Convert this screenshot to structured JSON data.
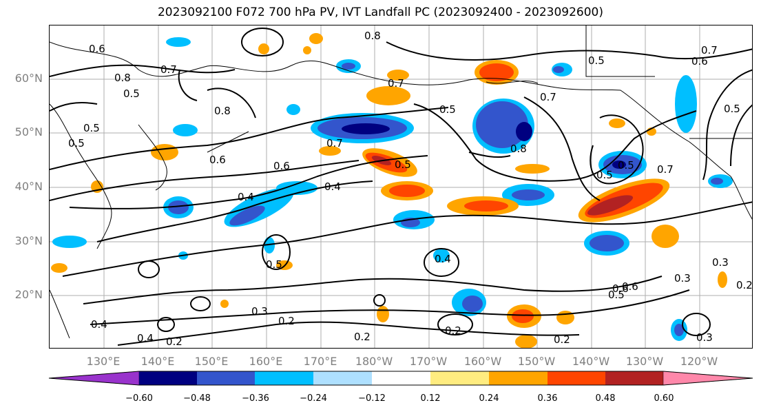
{
  "title": "2023092100 F072 700 hPa PV, IVT Landfall PC (2023092400 - 2023092600)",
  "latitude_labels": [
    "60°N",
    "50°N",
    "40°N",
    "30°N",
    "20°N"
  ],
  "longitude_labels": [
    "130°E",
    "140°E",
    "150°E",
    "160°E",
    "170°E",
    "180°W",
    "170°W",
    "160°W",
    "150°W",
    "140°W",
    "130°W",
    "120°W"
  ],
  "colorbar": {
    "colors": [
      "#9933cc",
      "#000080",
      "#3355cc",
      "#00bfff",
      "#aee0ff",
      "#ffffff",
      "#ffec80",
      "#ffa500",
      "#ff4500",
      "#b22222",
      "#ff88aa"
    ],
    "ticks": [
      "−0.60",
      "−0.48",
      "−0.36",
      "−0.24",
      "−0.12",
      "0.12",
      "0.24",
      "0.36",
      "0.48",
      "0.60"
    ]
  },
  "contour_labels": [
    "0.6",
    "0.7",
    "0.8",
    "0.5",
    "0.8",
    "0.5",
    "0.5",
    "0.4",
    "0.7",
    "0.6",
    "0.4",
    "0.5",
    "0.6",
    "0.8",
    "0.7",
    "0.5",
    "0.7",
    "0.8",
    "0.5",
    "0.6",
    "0.7",
    "0.5",
    "0.7",
    "0.5",
    "0.4",
    "0.5",
    "0.6",
    "0.5",
    "0.3",
    "0.3",
    "0.2",
    "0.4",
    "0.2",
    "0.2",
    "0.2",
    "0.2",
    "0.3",
    "0.3",
    "0.2",
    "0.4",
    "0.5",
    "0.6"
  ]
}
